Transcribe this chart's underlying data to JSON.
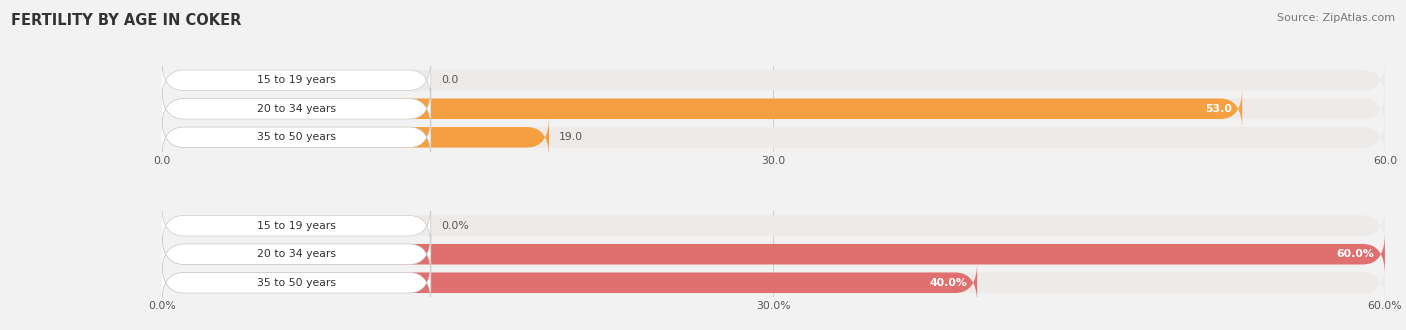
{
  "title": "FERTILITY BY AGE IN COKER",
  "source": "Source: ZipAtlas.com",
  "top_section": {
    "categories": [
      "15 to 19 years",
      "20 to 34 years",
      "35 to 50 years"
    ],
    "values": [
      0.0,
      53.0,
      19.0
    ],
    "max_val": 60.0,
    "bar_color": "#F5A040",
    "bar_color_light": "#F5CFA0",
    "bg_color": "#EEEAE8",
    "label_box_color": "#FFFFFF",
    "tick_vals": [
      0.0,
      30.0,
      60.0
    ],
    "tick_labels": [
      "0.0",
      "30.0",
      "60.0"
    ]
  },
  "bottom_section": {
    "categories": [
      "15 to 19 years",
      "20 to 34 years",
      "35 to 50 years"
    ],
    "values": [
      0.0,
      60.0,
      40.0
    ],
    "max_val": 60.0,
    "bar_color": "#E07070",
    "bar_color_light": "#EDAAAA",
    "bg_color": "#EEEAE8",
    "label_box_color": "#FFFFFF",
    "tick_vals": [
      0.0,
      30.0,
      60.0
    ],
    "tick_labels": [
      "0.0%",
      "30.0%",
      "60.0%"
    ]
  },
  "fig_bg": "#F2F2F2",
  "figsize": [
    14.06,
    3.3
  ],
  "dpi": 100
}
